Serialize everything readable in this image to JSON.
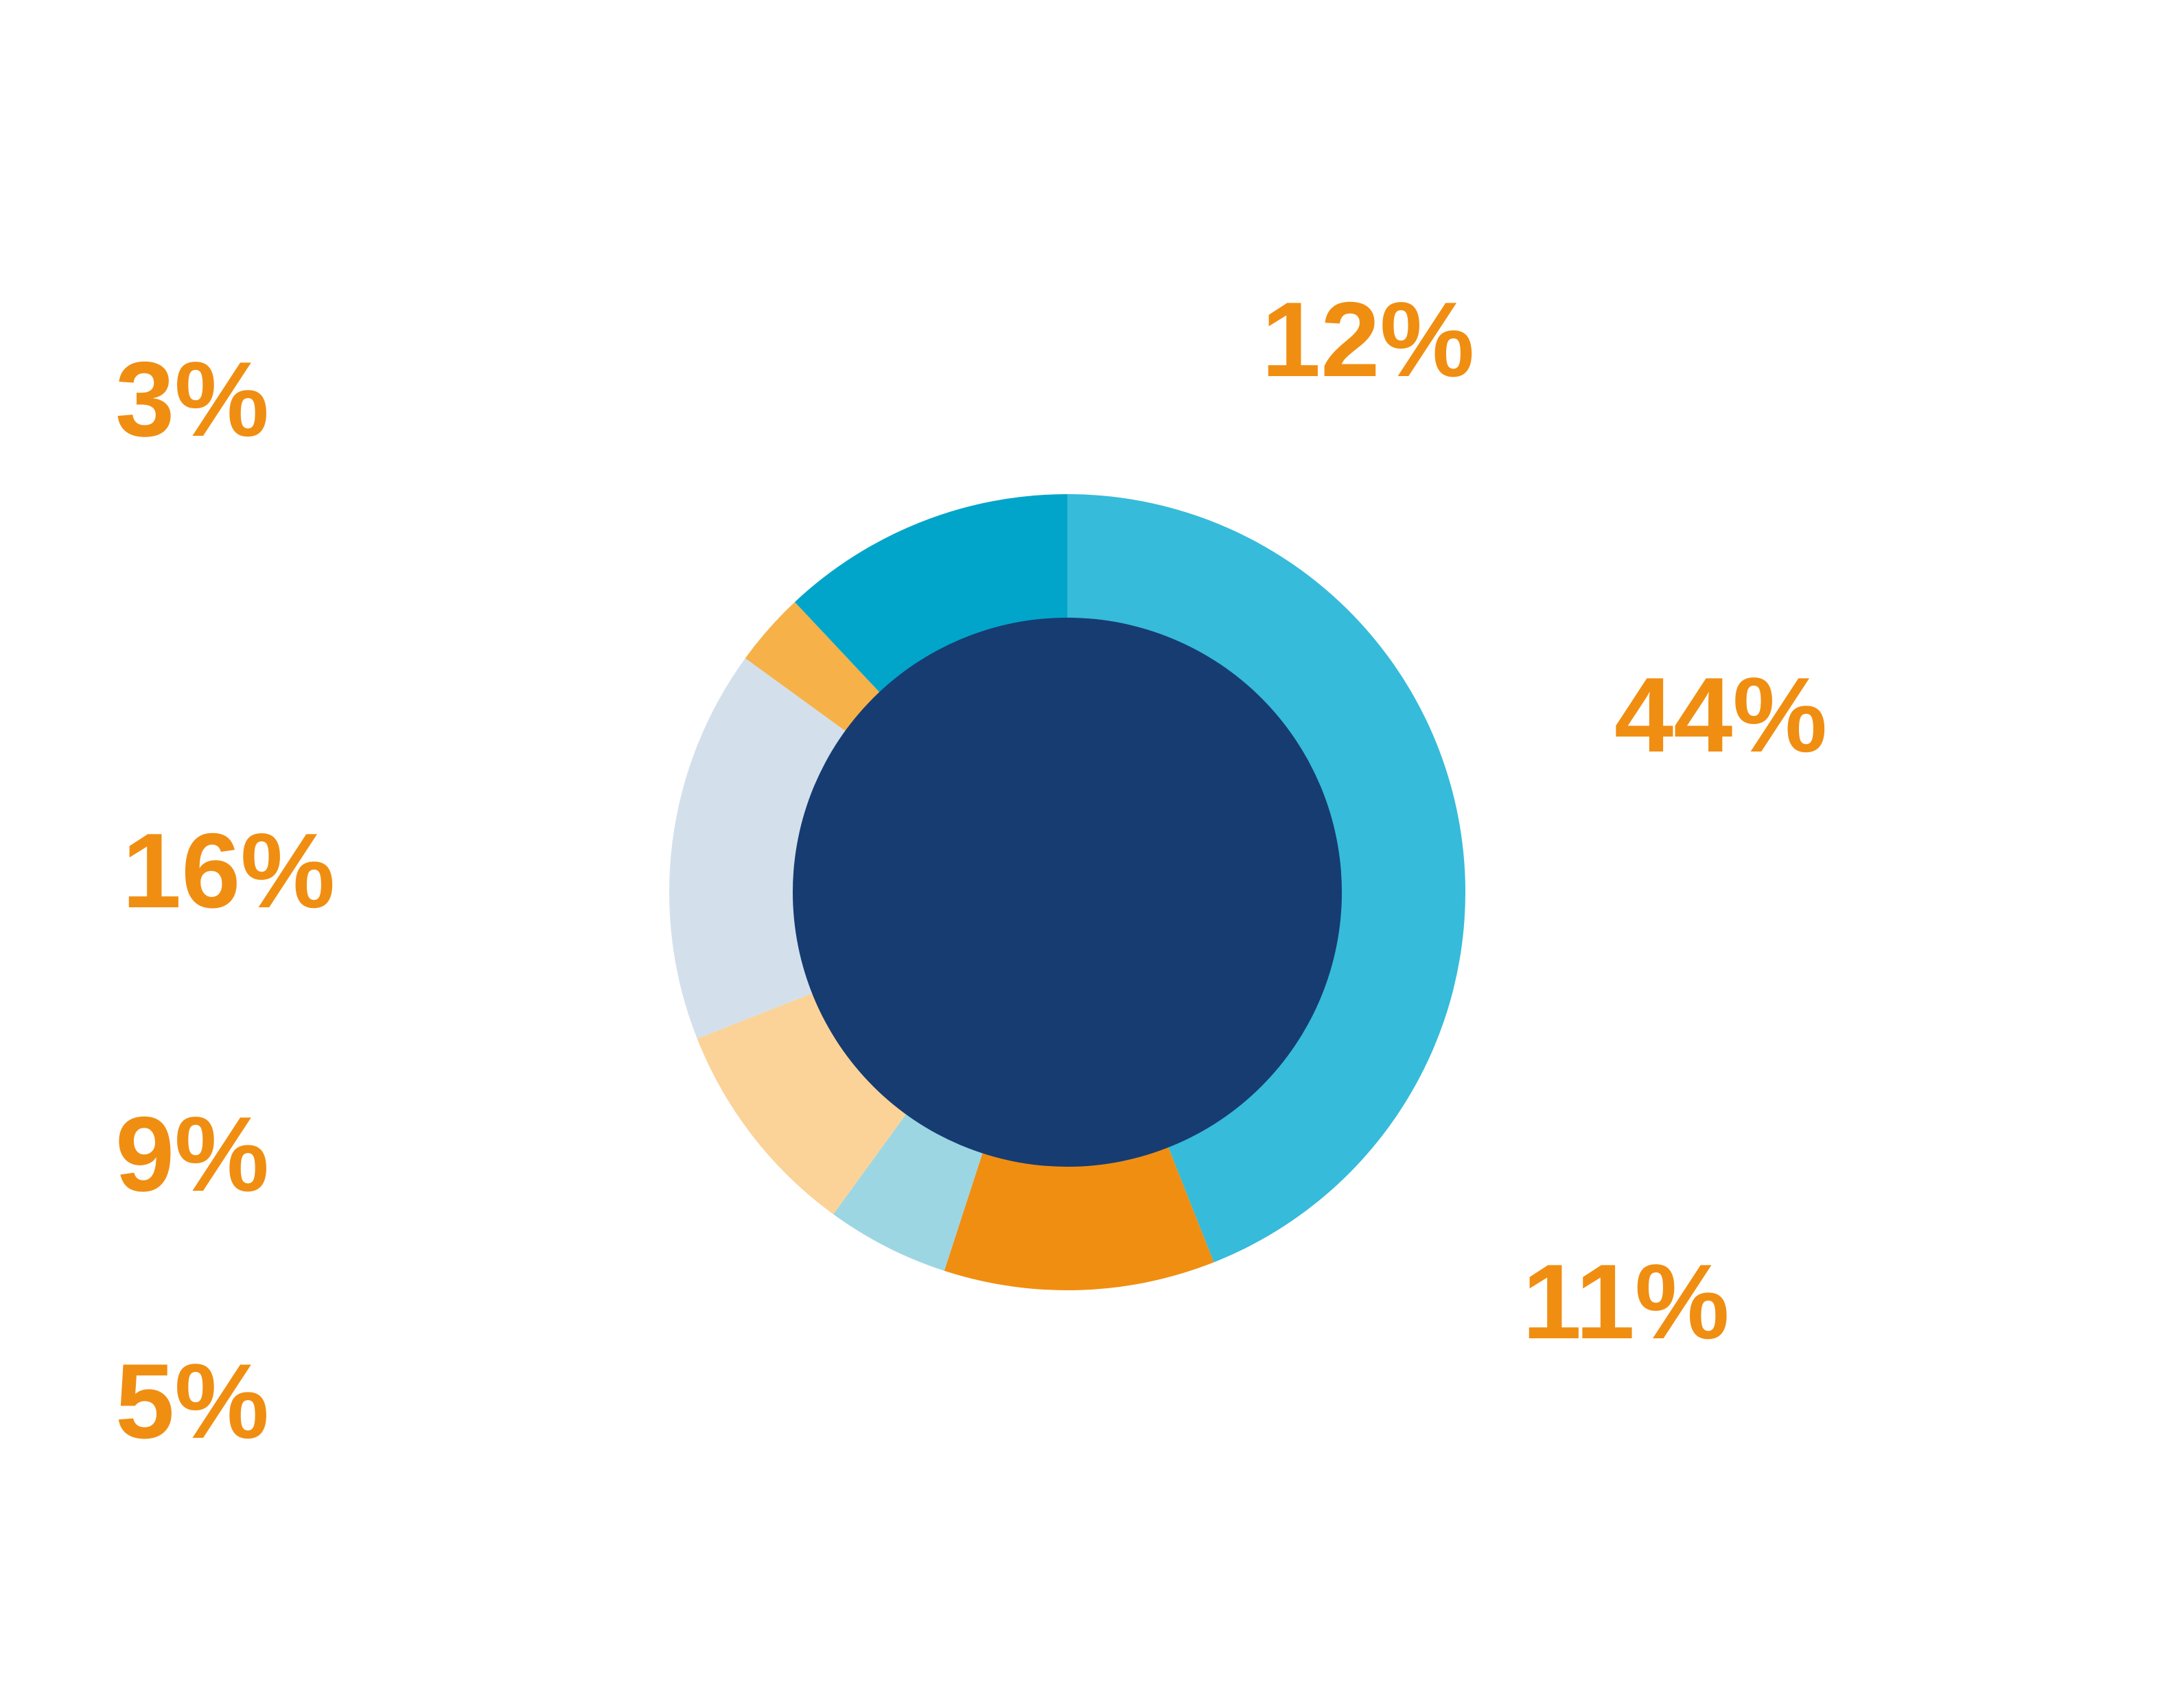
{
  "chart_data": {
    "type": "pie",
    "variant": "donut",
    "title": "",
    "slices": [
      {
        "value": 44,
        "label": "44%",
        "color": "#36BBDA"
      },
      {
        "value": 11,
        "label": "11%",
        "color": "#F08E12"
      },
      {
        "value": 5,
        "label": "5%",
        "color": "#9DD6E3"
      },
      {
        "value": 9,
        "label": "9%",
        "color": "#FBD398"
      },
      {
        "value": 16,
        "label": "16%",
        "color": "#D3E0EC"
      },
      {
        "value": 3,
        "label": "3%",
        "color": "#F6B148"
      },
      {
        "value": 12,
        "label": "12%",
        "color": "#02A5CA"
      }
    ],
    "start": "12 o'clock",
    "direction": "clockwise",
    "center_color": "#163C72",
    "label_color": "#F08E12",
    "legend": "none",
    "grid": false
  }
}
